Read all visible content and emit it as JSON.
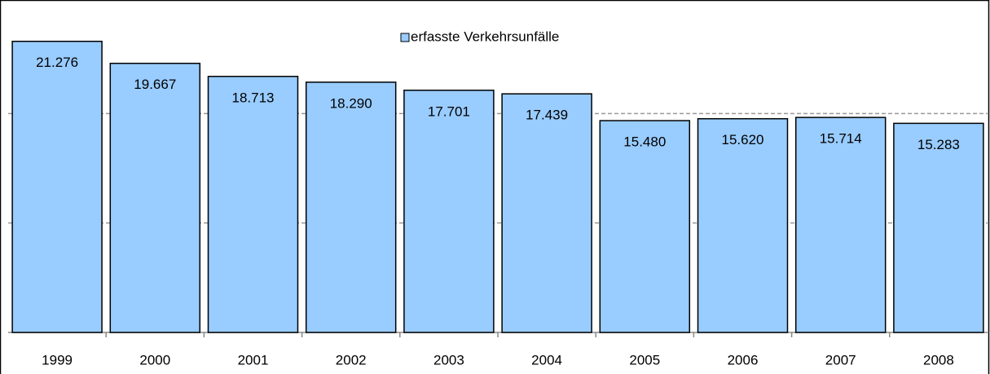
{
  "chart_data": {
    "type": "bar",
    "legend": "erfasste Verkehrsunfälle",
    "categories": [
      "1999",
      "2000",
      "2001",
      "2002",
      "2003",
      "2004",
      "2005",
      "2006",
      "2007",
      "2008"
    ],
    "values": [
      21276,
      19667,
      18713,
      18290,
      17701,
      17439,
      15480,
      15620,
      15714,
      15283
    ],
    "value_labels": [
      "21.276",
      "19.667",
      "18.713",
      "18.290",
      "17.701",
      "17.439",
      "15.480",
      "15.620",
      "15.714",
      "15.283"
    ],
    "color": "#99ccff",
    "ylim": [
      0,
      24000
    ],
    "yticks": [
      0,
      8000,
      16000,
      24000
    ],
    "grid": true
  }
}
